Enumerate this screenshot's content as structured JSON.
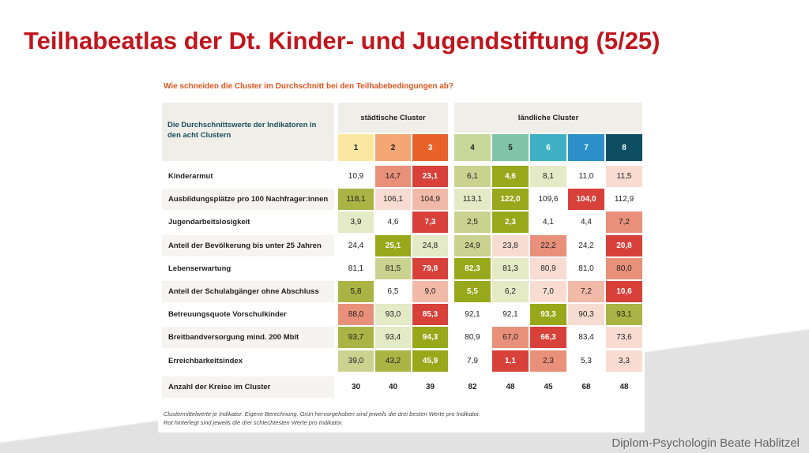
{
  "header": {
    "title": "Teilhabeatlas der Dt. Kinder- und Jugendstiftung (5/25)"
  },
  "table": {
    "subtitle": "Wie schneiden die Cluster im Durchschnitt bei den Teilhabebedingungen ab?",
    "header_label": "Die Durchschnittswerte der Indikatoren in den acht Clustern",
    "groups": [
      "städtische Cluster",
      "ländliche Cluster"
    ],
    "clusters": [
      "1",
      "2",
      "3",
      "4",
      "5",
      "6",
      "7",
      "8"
    ],
    "cluster_colors": [
      "#fbe7a0",
      "#f4a772",
      "#e8622a",
      "#c8d89a",
      "#7fc4a8",
      "#3fb0c4",
      "#2c8fc8",
      "#0e4e62"
    ],
    "rows": [
      {
        "label": "Kinderarmut",
        "cells": [
          "10,9",
          "14,7",
          "23,1",
          "6,1",
          "4,6",
          "8,1",
          "11,0",
          "11,5"
        ],
        "colors": [
          "#ffffff",
          "#e9907a",
          "#d8403a",
          "#c9d28f",
          "#97a81a",
          "#e4e9c6",
          "#ffffff",
          "#f8dcd2"
        ]
      },
      {
        "label": "Ausbildungsplätze pro 100 Nachfrager:innen",
        "cells": [
          "118,1",
          "106,1",
          "104,9",
          "113,1",
          "122,0",
          "109,6",
          "104,0",
          "112,9"
        ],
        "colors": [
          "#aab445",
          "#f8dcd2",
          "#f0b9a8",
          "#e4e9c6",
          "#97a81a",
          "#ffffff",
          "#d8403a",
          "#ffffff"
        ]
      },
      {
        "label": "Jugendarbeitslosigkeit",
        "cells": [
          "3,9",
          "4,6",
          "7,3",
          "2,5",
          "2,3",
          "4,1",
          "4,4",
          "7,2"
        ],
        "colors": [
          "#e4e9c6",
          "#ffffff",
          "#d8403a",
          "#c9d28f",
          "#97a81a",
          "#ffffff",
          "#ffffff",
          "#e9907a"
        ]
      },
      {
        "label": "Anteil der Bevölkerung bis unter 25 Jahren",
        "cells": [
          "24,4",
          "25,1",
          "24,8",
          "24,9",
          "23,8",
          "22,2",
          "24,2",
          "20,8"
        ],
        "colors": [
          "#ffffff",
          "#97a81a",
          "#e4e9c6",
          "#c9d28f",
          "#f8dcd2",
          "#e9907a",
          "#ffffff",
          "#d8403a"
        ]
      },
      {
        "label": "Lebenserwartung",
        "cells": [
          "81,1",
          "81,5",
          "79,8",
          "82,3",
          "81,3",
          "80,9",
          "81,0",
          "80,0"
        ],
        "colors": [
          "#ffffff",
          "#c9d28f",
          "#d8403a",
          "#97a81a",
          "#e4e9c6",
          "#f8dcd2",
          "#ffffff",
          "#e9907a"
        ]
      },
      {
        "label": "Anteil der Schulabgänger ohne Abschluss",
        "cells": [
          "5,8",
          "6,5",
          "9,0",
          "5,5",
          "6,2",
          "7,0",
          "7,2",
          "10,6"
        ],
        "colors": [
          "#aab445",
          "#ffffff",
          "#f0b9a8",
          "#97a81a",
          "#e4e9c6",
          "#f8dcd2",
          "#f0b9a8",
          "#d8403a"
        ]
      },
      {
        "label": "Betreuungsquote Vorschulkinder",
        "cells": [
          "88,0",
          "93,0",
          "85,3",
          "92,1",
          "92,1",
          "93,3",
          "90,3",
          "93,1"
        ],
        "colors": [
          "#e9907a",
          "#e4e9c6",
          "#d8403a",
          "#ffffff",
          "#ffffff",
          "#97a81a",
          "#f8dcd2",
          "#aab445"
        ]
      },
      {
        "label": "Breitbandversorgung mind. 200 Mbit",
        "cells": [
          "93,7",
          "93,4",
          "94,3",
          "80,9",
          "67,0",
          "66,3",
          "83,4",
          "73,6"
        ],
        "colors": [
          "#aab445",
          "#e4e9c6",
          "#97a81a",
          "#ffffff",
          "#e9907a",
          "#d8403a",
          "#ffffff",
          "#f8dcd2"
        ]
      },
      {
        "label": "Erreichbarkeitsindex",
        "cells": [
          "39,0",
          "43,2",
          "45,9",
          "7,9",
          "1,1",
          "2,3",
          "5,3",
          "3,3"
        ],
        "colors": [
          "#c9d28f",
          "#aab445",
          "#97a81a",
          "#ffffff",
          "#d8403a",
          "#e9907a",
          "#ffffff",
          "#f8dcd2"
        ]
      },
      {
        "label": "Anzahl der Kreise im Cluster",
        "cells": [
          "30",
          "40",
          "39",
          "82",
          "48",
          "45",
          "68",
          "48"
        ],
        "colors": [
          "#ffffff",
          "#ffffff",
          "#ffffff",
          "#ffffff",
          "#ffffff",
          "#ffffff",
          "#ffffff",
          "#ffffff"
        ]
      }
    ],
    "notes": [
      "Clustermittelwerte je Indikator. Eigene Berechnung. Grün hervorgehoben sind jeweils die drei besten Werte pro Indikator.",
      "Rot hinterlegt sind jeweils die drei schlechtesten Werte pro Indikator."
    ]
  },
  "footer": {
    "credit": "Diplom-Psychologin Beate Hablitzel"
  }
}
